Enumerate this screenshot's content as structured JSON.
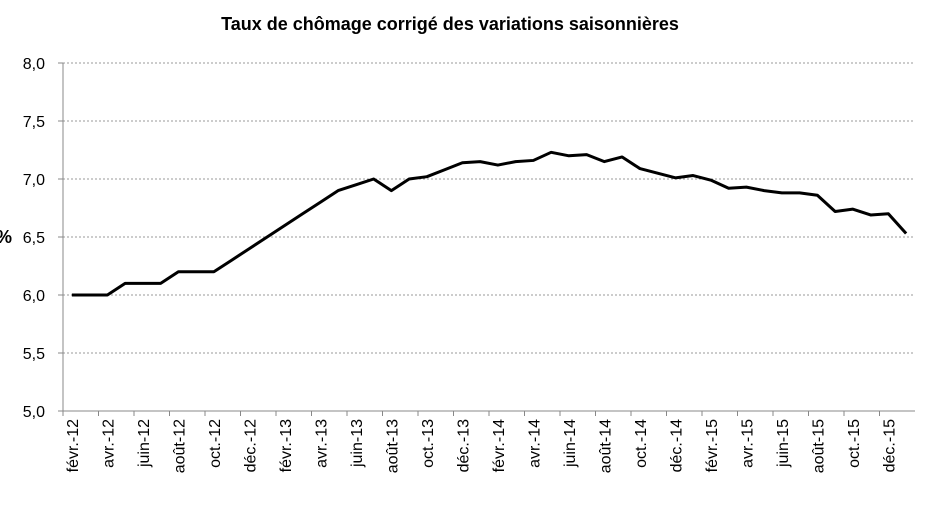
{
  "chart_data": {
    "type": "line",
    "title": "Taux de chômage corrigé des variations saisonnières",
    "y_label": "%",
    "categories": [
      "févr.-12",
      null,
      "avr.-12",
      null,
      "juin-12",
      null,
      "août-12",
      null,
      "oct.-12",
      null,
      "déc.-12",
      null,
      "févr.-13",
      null,
      "avr.-13",
      null,
      "juin-13",
      null,
      "août-13",
      null,
      "oct.-13",
      null,
      "déc.-13",
      null,
      "févr.-14",
      null,
      "avr.-14",
      null,
      "juin-14",
      null,
      "août-14",
      null,
      "oct.-14",
      null,
      "déc.-14",
      null,
      "févr.-15",
      null,
      "avr.-15",
      null,
      "juin-15",
      null,
      "août-15",
      null,
      "oct.-15",
      null,
      "déc.-15",
      null
    ],
    "series": [
      {
        "color": "#000000",
        "values": [
          6.0,
          6.0,
          6.0,
          6.1,
          6.1,
          6.1,
          6.2,
          6.2,
          6.2,
          6.3,
          6.4,
          6.5,
          6.6,
          6.7,
          6.8,
          6.9,
          6.95,
          7.0,
          6.9,
          7.0,
          7.02,
          7.08,
          7.14,
          7.15,
          7.12,
          7.15,
          7.16,
          7.23,
          7.2,
          7.21,
          7.15,
          7.19,
          7.09,
          7.05,
          7.01,
          7.03,
          6.99,
          6.92,
          6.93,
          6.9,
          6.88,
          6.88,
          6.86,
          6.72,
          6.74,
          6.69,
          6.7,
          6.53
        ]
      }
    ],
    "ylim": [
      5.0,
      8.0
    ],
    "yticks": [
      {
        "value": 5.0,
        "label": "5,0"
      },
      {
        "value": 5.5,
        "label": "5,5"
      },
      {
        "value": 6.0,
        "label": "6,0"
      },
      {
        "value": 6.5,
        "label": "6,5"
      },
      {
        "value": 7.0,
        "label": "7,0"
      },
      {
        "value": 7.5,
        "label": "7,5"
      },
      {
        "value": 8.0,
        "label": "8,0"
      }
    ],
    "grid": true
  }
}
